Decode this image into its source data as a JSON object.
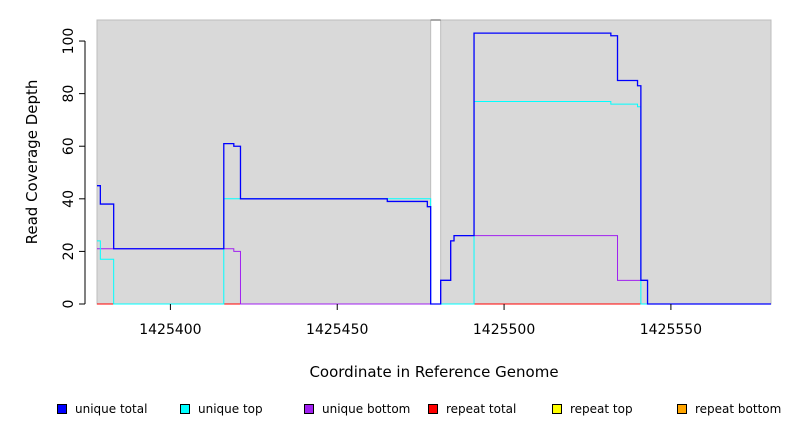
{
  "chart_data": {
    "type": "line",
    "xlabel": "Coordinate in Reference Genome",
    "ylabel": "Read Coverage Depth",
    "xlim": [
      1425378,
      1425580
    ],
    "ylim": [
      0,
      108
    ],
    "x_ticks": [
      1425400,
      1425450,
      1425500,
      1425550
    ],
    "y_ticks": [
      0,
      20,
      40,
      60,
      80,
      100
    ],
    "grid": false,
    "legend_position": "bottom",
    "panel_background": "#d9d9d9",
    "gap": [
      1425478,
      1425481
    ],
    "series": [
      {
        "name": "unique total",
        "color": "#0000ff",
        "points": [
          [
            1425378,
            45
          ],
          [
            1425379,
            45
          ],
          [
            1425379,
            38
          ],
          [
            1425383,
            38
          ],
          [
            1425383,
            21
          ],
          [
            1425416,
            21
          ],
          [
            1425416,
            61
          ],
          [
            1425419,
            61
          ],
          [
            1425419,
            60
          ],
          [
            1425421,
            60
          ],
          [
            1425421,
            40
          ],
          [
            1425465,
            40
          ],
          [
            1425465,
            39
          ],
          [
            1425477,
            39
          ],
          [
            1425477,
            37
          ],
          [
            1425478,
            37
          ],
          [
            1425478,
            0
          ],
          [
            1425481,
            0
          ],
          [
            1425481,
            9
          ],
          [
            1425484,
            9
          ],
          [
            1425484,
            24
          ],
          [
            1425485,
            24
          ],
          [
            1425485,
            26
          ],
          [
            1425491,
            26
          ],
          [
            1425491,
            103
          ],
          [
            1425532,
            103
          ],
          [
            1425532,
            102
          ],
          [
            1425534,
            102
          ],
          [
            1425534,
            85
          ],
          [
            1425540,
            85
          ],
          [
            1425540,
            83
          ],
          [
            1425541,
            83
          ],
          [
            1425541,
            9
          ],
          [
            1425543,
            9
          ],
          [
            1425543,
            0
          ],
          [
            1425580,
            0
          ]
        ]
      },
      {
        "name": "unique top",
        "color": "#00ffff",
        "points": [
          [
            1425378,
            24
          ],
          [
            1425379,
            24
          ],
          [
            1425379,
            17
          ],
          [
            1425383,
            17
          ],
          [
            1425383,
            0
          ],
          [
            1425416,
            0
          ],
          [
            1425416,
            40
          ],
          [
            1425478,
            40
          ],
          [
            1425478,
            0
          ],
          [
            1425491,
            0
          ],
          [
            1425491,
            77
          ],
          [
            1425532,
            77
          ],
          [
            1425532,
            76
          ],
          [
            1425540,
            76
          ],
          [
            1425540,
            75
          ],
          [
            1425541,
            75
          ],
          [
            1425541,
            0
          ],
          [
            1425580,
            0
          ]
        ]
      },
      {
        "name": "unique bottom",
        "color": "#a020f0",
        "points": [
          [
            1425378,
            21
          ],
          [
            1425419,
            21
          ],
          [
            1425419,
            20
          ],
          [
            1425421,
            20
          ],
          [
            1425421,
            0
          ],
          [
            1425478,
            0
          ],
          [
            1425481,
            0
          ],
          [
            1425481,
            9
          ],
          [
            1425484,
            9
          ],
          [
            1425484,
            24
          ],
          [
            1425485,
            24
          ],
          [
            1425485,
            26
          ],
          [
            1425534,
            26
          ],
          [
            1425534,
            9
          ],
          [
            1425541,
            9
          ],
          [
            1425543,
            9
          ],
          [
            1425543,
            0
          ],
          [
            1425580,
            0
          ]
        ]
      },
      {
        "name": "repeat total",
        "color": "#ff0000",
        "points": [
          [
            1425378,
            0
          ],
          [
            1425580,
            0
          ]
        ]
      },
      {
        "name": "repeat top",
        "color": "#ffff00",
        "points": [
          [
            1425378,
            0
          ],
          [
            1425580,
            0
          ]
        ]
      },
      {
        "name": "repeat bottom",
        "color": "#ffa500",
        "points": [
          [
            1425378,
            0
          ],
          [
            1425580,
            0
          ]
        ]
      }
    ]
  },
  "legend": [
    {
      "label": "unique total",
      "color": "#0000ff"
    },
    {
      "label": "unique top",
      "color": "#00ffff"
    },
    {
      "label": "unique bottom",
      "color": "#a020f0"
    },
    {
      "label": "repeat total",
      "color": "#ff0000"
    },
    {
      "label": "repeat top",
      "color": "#ffff00"
    },
    {
      "label": "repeat bottom",
      "color": "#ffa500"
    }
  ]
}
